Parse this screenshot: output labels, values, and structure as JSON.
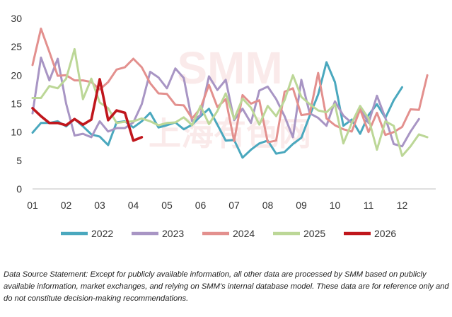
{
  "chart_data": {
    "type": "line",
    "title": "",
    "xlabel": "",
    "ylabel": "",
    "ylim": [
      0,
      30
    ],
    "y_ticks": [
      0,
      5,
      10,
      15,
      20,
      25,
      30
    ],
    "x_range": [
      0,
      12
    ],
    "x_ticks": [
      {
        "label": "01",
        "x": 0
      },
      {
        "label": "02",
        "x": 1
      },
      {
        "label": "03",
        "x": 2
      },
      {
        "label": "04",
        "x": 3
      },
      {
        "label": "05",
        "x": 4
      },
      {
        "label": "06",
        "x": 5
      },
      {
        "label": "07",
        "x": 6
      },
      {
        "label": "08",
        "x": 7
      },
      {
        "label": "09",
        "x": 8
      },
      {
        "label": "10",
        "x": 9
      },
      {
        "label": "11",
        "x": 10
      },
      {
        "label": "12",
        "x": 11
      }
    ],
    "grid": false,
    "legend_position": "bottom",
    "watermark": "SMM 上海有色网",
    "series": [
      {
        "name": "2022",
        "color": "#4aa8be",
        "x": [
          0,
          0.25,
          0.5,
          0.75,
          1,
          1.25,
          1.5,
          1.75,
          2,
          2.25,
          2.5,
          2.75,
          3,
          3.25,
          3.5,
          3.75,
          4,
          4.25,
          4.5,
          4.75,
          5,
          5.25,
          5.5,
          5.75,
          6,
          6.25,
          6.5,
          6.75,
          7,
          7.25,
          7.5,
          7.75,
          8,
          8.25,
          8.5,
          8.75,
          9,
          9.25,
          9.5,
          9.75,
          10,
          10.25,
          10.5,
          10.75,
          11,
          11.25,
          11.5,
          11.75
        ],
        "y": [
          9.9,
          11.6,
          11.6,
          11.9,
          11.0,
          12.3,
          11.0,
          9.6,
          9.2,
          7.7,
          11.7,
          11.9,
          10.8,
          11.9,
          13.4,
          10.8,
          11.2,
          11.7,
          10.5,
          11.3,
          12.8,
          14.1,
          11.3,
          8.5,
          8.6,
          5.5,
          6.9,
          8.0,
          8.5,
          6.2,
          6.5,
          7.9,
          9.0,
          12.9,
          16.6,
          22.3,
          18.8,
          11.1,
          12.2,
          9.7,
          13.0,
          14.9,
          12.5,
          15.6,
          17.9,
          null,
          null,
          null
        ]
      },
      {
        "name": "2023",
        "color": "#a895c4",
        "x": [
          0,
          0.25,
          0.5,
          0.75,
          1,
          1.25,
          1.5,
          1.75,
          2,
          2.25,
          2.5,
          2.75,
          3,
          3.25,
          3.5,
          3.75,
          4,
          4.25,
          4.5,
          4.75,
          5,
          5.25,
          5.5,
          5.75,
          6,
          6.25,
          6.5,
          6.75,
          7,
          7.25,
          7.5,
          7.75,
          8,
          8.25,
          8.5,
          8.75,
          9,
          9.25,
          9.5,
          9.75,
          10,
          10.25,
          10.5,
          10.75,
          11,
          11.25,
          11.5,
          11.75
        ],
        "y": [
          13.3,
          23.1,
          19.1,
          22.9,
          15.0,
          9.4,
          9.7,
          9.1,
          11.9,
          10.1,
          10.7,
          10.7,
          11.7,
          14.9,
          20.6,
          19.6,
          17.7,
          21.2,
          19.5,
          11.9,
          13.0,
          19.8,
          17.4,
          19.2,
          12.1,
          14.1,
          11.6,
          17.3,
          18.0,
          15.8,
          12.8,
          9.1,
          19.2,
          13.3,
          12.5,
          11.1,
          15.4,
          12.9,
          11.6,
          14.3,
          11.6,
          16.4,
          12.5,
          7.9,
          7.5,
          10.1,
          12.3,
          null
        ]
      },
      {
        "name": "2024",
        "color": "#e3908e",
        "x": [
          0,
          0.25,
          0.5,
          0.75,
          1,
          1.25,
          1.5,
          1.75,
          2,
          2.25,
          2.5,
          2.75,
          3,
          3.25,
          3.5,
          3.75,
          4,
          4.25,
          4.5,
          4.75,
          5,
          5.25,
          5.5,
          5.75,
          6,
          6.25,
          6.5,
          6.75,
          7,
          7.25,
          7.5,
          7.75,
          8,
          8.25,
          8.5,
          8.75,
          9,
          9.25,
          9.5,
          9.75,
          10,
          10.25,
          10.5,
          10.75,
          11,
          11.25,
          11.5,
          11.75
        ],
        "y": [
          21.8,
          28.2,
          24.1,
          19.9,
          20.0,
          19.1,
          19.1,
          18.8,
          17.5,
          18.8,
          21.0,
          21.4,
          22.9,
          21.4,
          18.6,
          16.8,
          16.7,
          14.8,
          14.7,
          12.4,
          14.2,
          18.3,
          14.4,
          15.8,
          8.4,
          16.5,
          15.0,
          15.6,
          8.2,
          8.5,
          17.1,
          17.7,
          13.0,
          13.2,
          20.4,
          12.4,
          11.2,
          10.5,
          10.1,
          14.0,
          10.0,
          13.4,
          9.5,
          10.0,
          10.9,
          14.0,
          13.9,
          20.0
        ]
      },
      {
        "name": "2025",
        "color": "#bcd797",
        "x": [
          0,
          0.25,
          0.5,
          0.75,
          1,
          1.25,
          1.5,
          1.75,
          2,
          2.25,
          2.5,
          2.75,
          3,
          3.25,
          3.5,
          3.75,
          4,
          4.25,
          4.5,
          4.75,
          5,
          5.25,
          5.5,
          5.75,
          6,
          6.25,
          6.5,
          6.75,
          7,
          7.25,
          7.5,
          7.75,
          8,
          8.25,
          8.5,
          8.75,
          9,
          9.25,
          9.5,
          9.75,
          10,
          10.25,
          10.5,
          10.75,
          11,
          11.25,
          11.5,
          11.75
        ],
        "y": [
          16.0,
          16.0,
          18.1,
          17.7,
          19.4,
          24.6,
          15.8,
          19.4,
          15.2,
          14.2,
          11.6,
          11.8,
          11.9,
          12.4,
          11.9,
          11.2,
          11.6,
          11.7,
          12.6,
          11.2,
          14.6,
          11.4,
          13.7,
          16.8,
          12.3,
          15.9,
          14.3,
          11.3,
          14.6,
          12.8,
          15.6,
          20.0,
          16.2,
          14.9,
          13.8,
          13.5,
          14.9,
          8.0,
          11.6,
          14.6,
          12.4,
          6.9,
          11.9,
          11.1,
          5.8,
          7.5,
          9.6,
          9.1
        ]
      },
      {
        "name": "2026",
        "color": "#c0161c",
        "x": [
          0,
          0.25,
          0.5,
          0.75,
          1,
          1.25,
          1.5,
          1.75,
          2,
          2.25,
          2.5,
          2.75,
          3,
          3.25
        ],
        "y": [
          14.2,
          12.8,
          11.6,
          11.6,
          11.2,
          12.3,
          11.3,
          12.2,
          19.3,
          12.1,
          13.8,
          13.4,
          8.5,
          9.1
        ]
      }
    ]
  },
  "footnote": "Data Source Statement: Except for publicly available information, all other data are processed by SMM based on publicly available information, market exchanges, and relying on SMM's internal database model. These data are for reference only and do not constitute decision-making recommendations."
}
